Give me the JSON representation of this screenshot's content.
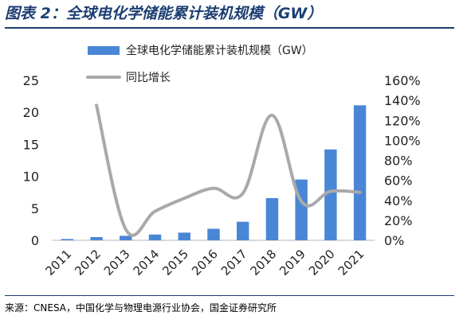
{
  "figure": {
    "title": "图表 2：全球电化学储能累计装机规模（GW）",
    "source": "来源：CNESA，中国化学与物理电源行业协会，国金证券研究所"
  },
  "chart_data": {
    "type": "bar",
    "categories": [
      "2011",
      "2012",
      "2013",
      "2014",
      "2015",
      "2016",
      "2017",
      "2018",
      "2019",
      "2020",
      "2021"
    ],
    "series": [
      {
        "name": "全球电化学储能累计装机规模（GW）",
        "kind": "bar",
        "axis": "left",
        "color": "#4a86d6",
        "values": [
          0.2,
          0.5,
          0.7,
          0.9,
          1.2,
          1.8,
          2.9,
          6.6,
          9.5,
          14.2,
          21.1
        ]
      },
      {
        "name": "同比增长",
        "kind": "line",
        "axis": "right",
        "color": "#a9a9a9",
        "values": [
          null,
          135,
          11,
          29,
          42,
          52,
          47,
          125,
          39,
          49,
          48
        ]
      }
    ],
    "y_left": {
      "min": 0,
      "max": 25,
      "ticks": [
        "0",
        "5",
        "10",
        "15",
        "20",
        "25"
      ]
    },
    "y_right": {
      "min": 0,
      "max": 160,
      "ticks": [
        "0%",
        "20%",
        "40%",
        "60%",
        "80%",
        "100%",
        "120%",
        "140%",
        "160%"
      ]
    },
    "legend_position": "top",
    "grid": false
  }
}
